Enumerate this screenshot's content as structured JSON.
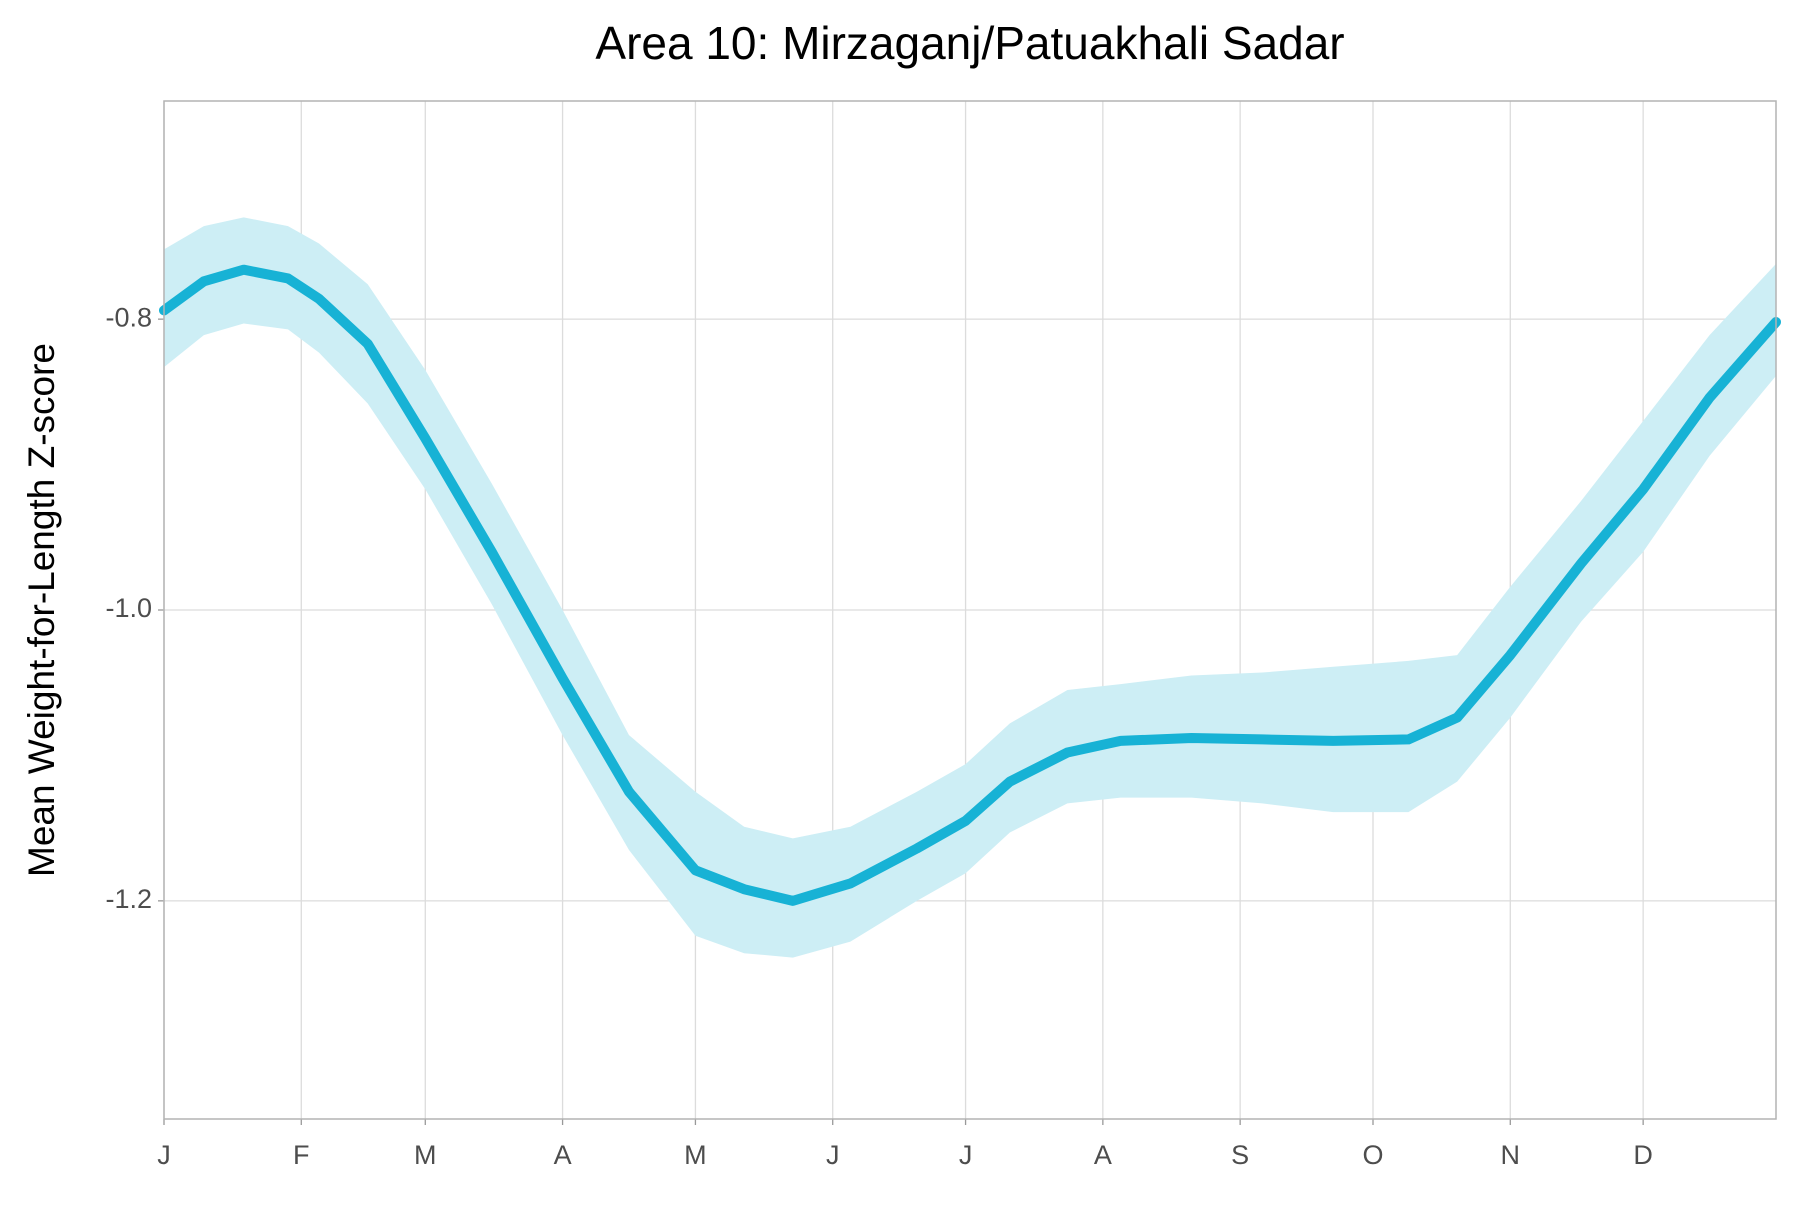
{
  "chart_data": {
    "type": "line",
    "title": "Area 10: Mirzaganj/Patuakhali Sadar",
    "y_label": "Mean Weight-for-Length Z-score",
    "x": [
      1,
      10,
      19,
      29,
      36,
      47,
      60,
      75,
      91,
      106,
      121,
      132,
      143,
      156,
      171,
      182,
      192,
      205,
      217,
      233,
      249,
      265,
      282,
      293,
      305,
      321,
      335,
      350,
      365
    ],
    "values": [
      -0.794,
      -0.774,
      -0.766,
      -0.772,
      -0.786,
      -0.817,
      -0.882,
      -0.96,
      -1.047,
      -1.125,
      -1.179,
      -1.192,
      -1.2,
      -1.188,
      -1.164,
      -1.145,
      -1.118,
      -1.098,
      -1.09,
      -1.088,
      -1.089,
      -1.09,
      -1.089,
      -1.074,
      -1.031,
      -0.968,
      -0.917,
      -0.854,
      -0.802
    ],
    "upper": [
      -0.752,
      -0.736,
      -0.73,
      -0.736,
      -0.748,
      -0.776,
      -0.835,
      -0.913,
      -1.0,
      -1.086,
      -1.125,
      -1.149,
      -1.157,
      -1.149,
      -1.125,
      -1.106,
      -1.078,
      -1.055,
      -1.051,
      -1.045,
      -1.043,
      -1.039,
      -1.035,
      -1.031,
      -0.984,
      -0.925,
      -0.87,
      -0.811,
      -0.762
    ],
    "lower": [
      -0.833,
      -0.811,
      -0.803,
      -0.807,
      -0.823,
      -0.858,
      -0.917,
      -0.996,
      -1.086,
      -1.165,
      -1.224,
      -1.236,
      -1.239,
      -1.228,
      -1.2,
      -1.181,
      -1.153,
      -1.133,
      -1.129,
      -1.129,
      -1.133,
      -1.139,
      -1.139,
      -1.118,
      -1.074,
      -1.008,
      -0.96,
      -0.894,
      -0.839
    ],
    "color": "#17b2d5",
    "band_color": "#cdeef5",
    "xlim": [
      1,
      365
    ],
    "ylim": [
      -1.35,
      -0.65
    ],
    "xticks": [
      {
        "value": 1,
        "label": "J"
      },
      {
        "value": 32,
        "label": "F"
      },
      {
        "value": 60,
        "label": "M"
      },
      {
        "value": 91,
        "label": "A"
      },
      {
        "value": 121,
        "label": "M"
      },
      {
        "value": 152,
        "label": "J"
      },
      {
        "value": 182,
        "label": "J"
      },
      {
        "value": 213,
        "label": "A"
      },
      {
        "value": 244,
        "label": "S"
      },
      {
        "value": 274,
        "label": "O"
      },
      {
        "value": 305,
        "label": "N"
      },
      {
        "value": 335,
        "label": "D"
      }
    ],
    "yticks": [
      -0.8,
      {
        "value": -1,
        "label": "-1.0"
      },
      -1.2
    ],
    "grid": true
  }
}
